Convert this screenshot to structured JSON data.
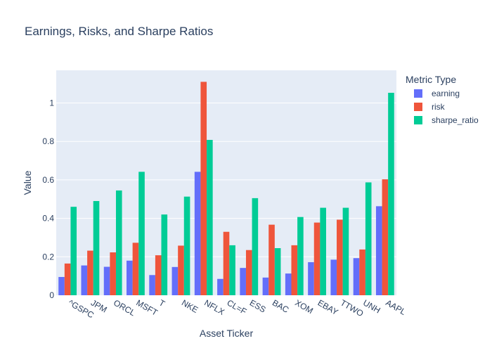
{
  "chart_data": {
    "type": "bar",
    "title": "Earnings, Risks, and Sharpe Ratios",
    "xlabel": "Asset Ticker",
    "ylabel": "Value",
    "ylim": [
      0,
      1.17
    ],
    "yticks": [
      0,
      0.2,
      0.4,
      0.6,
      0.8,
      1
    ],
    "ytick_labels": [
      "0",
      "0.2",
      "0.4",
      "0.6",
      "0.8",
      "1"
    ],
    "grid": true,
    "legend_title": "Metric Type",
    "legend_position": "right",
    "categories": [
      "^GSPC",
      "JPM",
      "ORCL",
      "MSFT",
      "T",
      "NKE",
      "NFLX",
      "CL=F",
      "ESS",
      "BAC",
      "XOM",
      "EBAY",
      "TTWO",
      "UNH",
      "AAPL"
    ],
    "series": [
      {
        "name": "earning",
        "color": "#636efa",
        "values": [
          0.095,
          0.155,
          0.148,
          0.18,
          0.105,
          0.147,
          0.642,
          0.085,
          0.142,
          0.092,
          0.113,
          0.172,
          0.185,
          0.193,
          0.463
        ]
      },
      {
        "name": "risk",
        "color": "#ef553b",
        "values": [
          0.165,
          0.232,
          0.223,
          0.273,
          0.208,
          0.258,
          1.11,
          0.33,
          0.235,
          0.367,
          0.26,
          0.378,
          0.393,
          0.238,
          0.603
        ]
      },
      {
        "name": "sharpe_ratio",
        "color": "#00cc96",
        "values": [
          0.46,
          0.49,
          0.545,
          0.642,
          0.42,
          0.513,
          0.808,
          0.26,
          0.505,
          0.245,
          0.407,
          0.455,
          0.455,
          0.587,
          1.053
        ]
      }
    ]
  }
}
